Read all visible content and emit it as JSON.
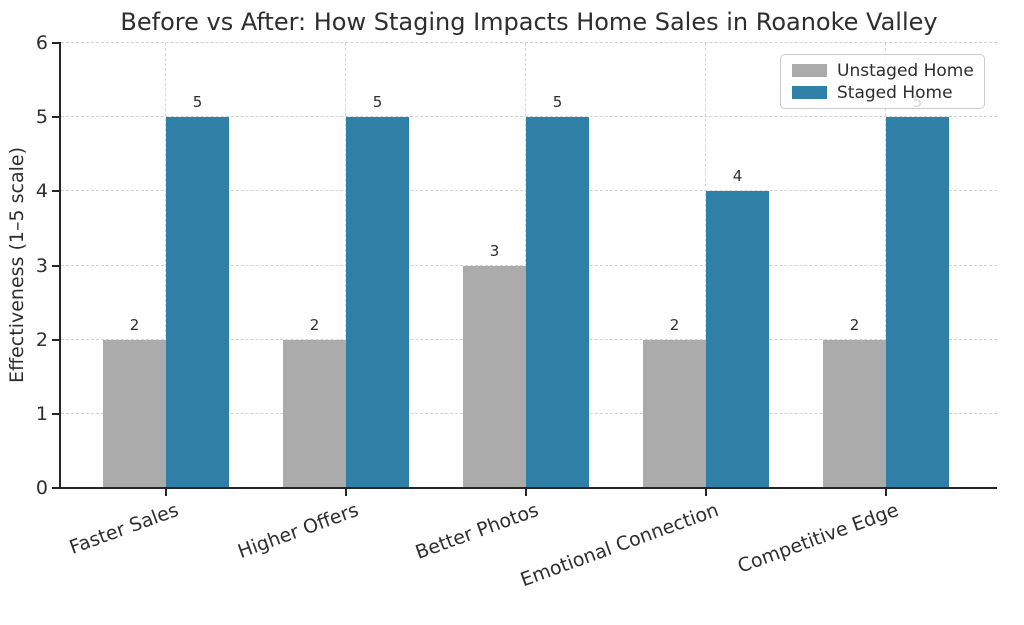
{
  "chart_data": {
    "type": "bar",
    "title": "Before vs After: How Staging Impacts Home Sales in Roanoke Valley",
    "ylabel": "Effectiveness (1–5 scale)",
    "xlabel": "",
    "categories": [
      "Faster Sales",
      "Higher Offers",
      "Better Photos",
      "Emotional Connection",
      "Competitive Edge"
    ],
    "series": [
      {
        "name": "Unstaged Home",
        "color": "#ababab",
        "values": [
          2,
          2,
          3,
          2,
          2
        ]
      },
      {
        "name": "Staged Home",
        "color": "#2f80a6",
        "values": [
          5,
          5,
          5,
          4,
          5
        ]
      }
    ],
    "ylim": [
      0,
      6
    ],
    "yticks": [
      0,
      1,
      2,
      3,
      4,
      5,
      6
    ],
    "grid": true,
    "bar_value_labels": true,
    "legend_position": "upper right",
    "xtick_rotation_deg": 20
  },
  "colors": {
    "grid": "#d4d4d4",
    "spine": "#262626",
    "text": "#2e2e2e",
    "background": "#ffffff"
  }
}
